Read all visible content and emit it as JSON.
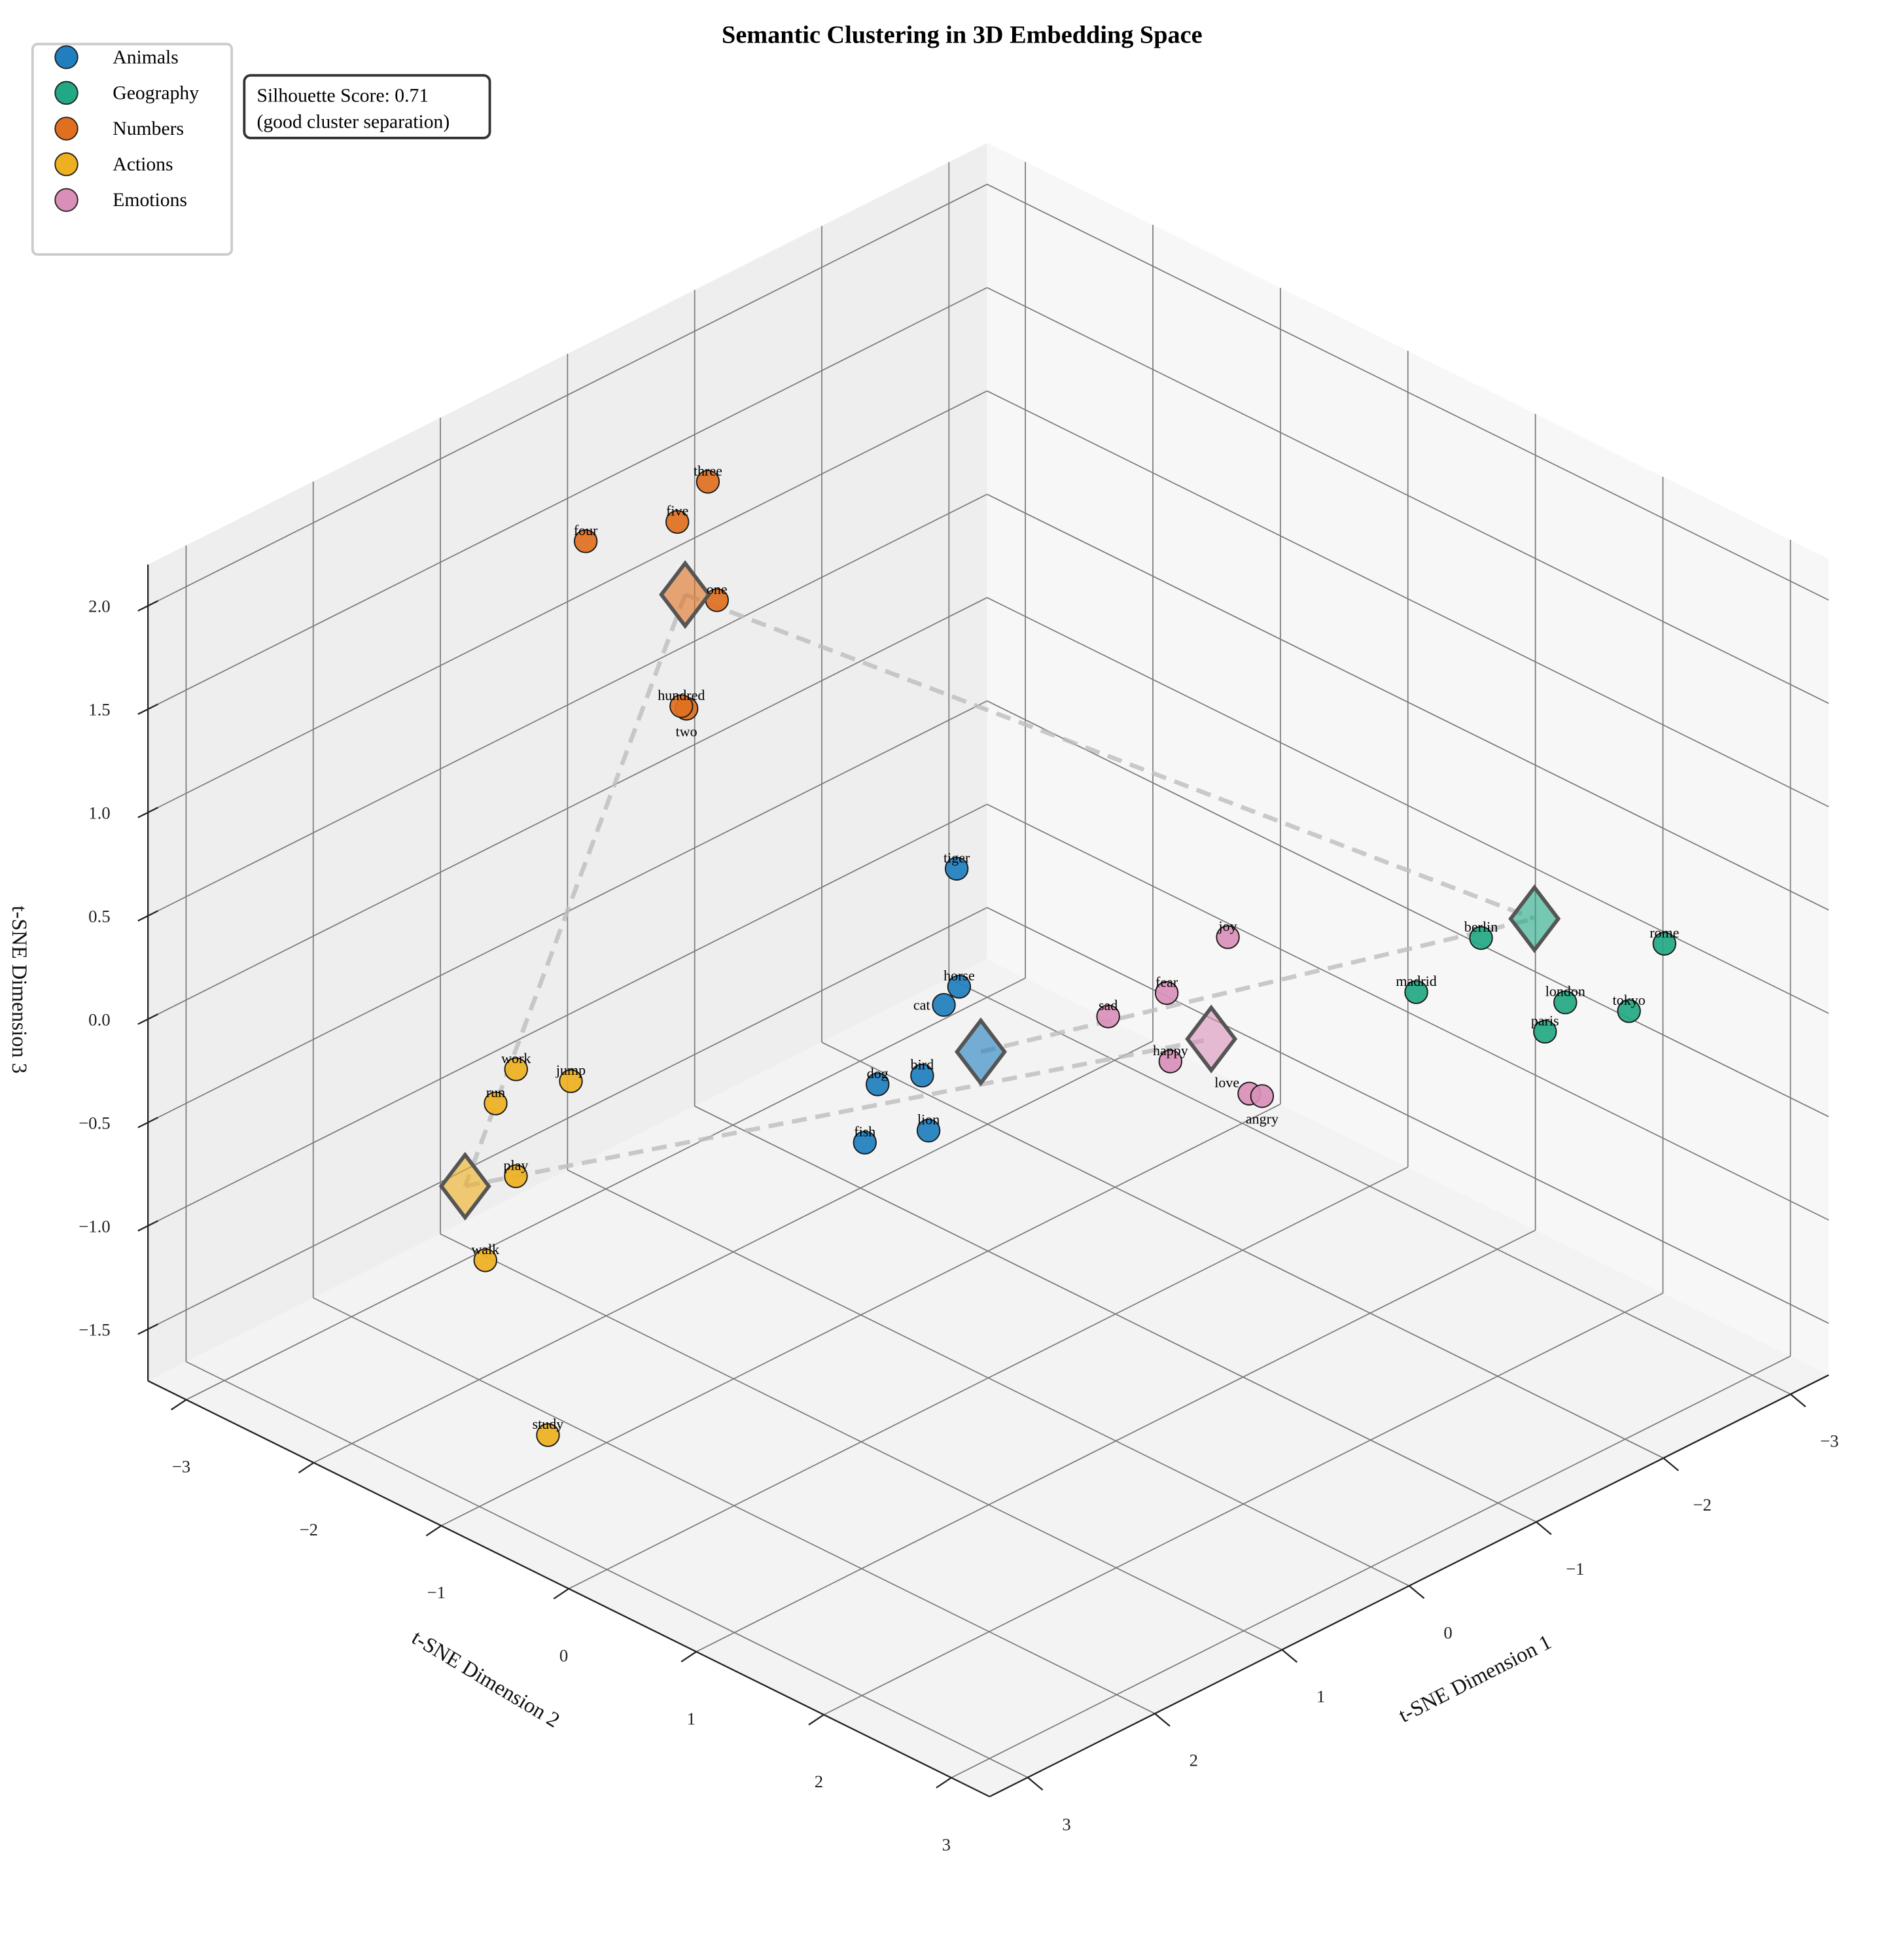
{
  "chart_data": {
    "type": "scatter3d",
    "title": "Semantic Clustering in 3D Embedding Space",
    "xlabel": "t-SNE Dimension 1",
    "ylabel": "t-SNE Dimension 2",
    "zlabel": "t-SNE Dimension 3",
    "xlim": [
      -3.3,
      3.3
    ],
    "ylim": [
      -3.3,
      3.3
    ],
    "zlim": [
      -1.75,
      2.2
    ],
    "xticks": [
      "-3",
      "-2",
      "-1",
      "0",
      "1",
      "2",
      "3"
    ],
    "yticks": [
      "-3",
      "-2",
      "-1",
      "0",
      "1",
      "2",
      "3"
    ],
    "zticks": [
      "-1.5",
      "-1.0",
      "-0.5",
      "0.0",
      "0.5",
      "1.0",
      "1.5",
      "2.0"
    ],
    "xtick_values": [
      -3,
      -2,
      -1,
      0,
      1,
      2,
      3
    ],
    "ytick_values": [
      -3,
      -2,
      -1,
      0,
      1,
      2,
      3
    ],
    "ztick_values": [
      -1.5,
      -1.0,
      -0.5,
      0.0,
      0.5,
      1.0,
      1.5,
      2.0
    ],
    "grid": true,
    "legend_position": "top-left",
    "annotation": {
      "line1": "Silhouette Score: 0.71",
      "line2": "(good cluster separation)"
    },
    "series": [
      {
        "name": "Animals",
        "color": "#1f7fbf",
        "centroid": [
          0.31,
          0.25,
          0.0
        ],
        "points": [
          {
            "word": "tiger",
            "x": 0.59,
            "y": 0.34,
            "z": 1.0
          },
          {
            "word": "horse",
            "x": 0.37,
            "y": 0.14,
            "z": 0.3
          },
          {
            "word": "cat",
            "x": 0.41,
            "y": 0.06,
            "z": 0.2
          },
          {
            "word": "dog",
            "x": 0.48,
            "y": -0.39,
            "z": -0.3
          },
          {
            "word": "bird",
            "x": 0.4,
            "y": -0.12,
            "z": -0.2
          },
          {
            "word": "fish",
            "x": 0.5,
            "y": -0.47,
            "z": -0.6
          },
          {
            "word": "lion",
            "x": 0.32,
            "y": -0.15,
            "z": -0.5
          }
        ]
      },
      {
        "name": "Geography",
        "color": "#22a884",
        "centroid": [
          -2.41,
          1.88,
          0.3
        ],
        "points": [
          {
            "word": "berlin",
            "x": -2.05,
            "y": 1.82,
            "z": 0.3
          },
          {
            "word": "rome",
            "x": -2.72,
            "y": 2.59,
            "z": 0.3
          },
          {
            "word": "madrid",
            "x": -1.37,
            "y": 1.99,
            "z": 0.3
          },
          {
            "word": "london",
            "x": -1.87,
            "y": 2.66,
            "z": 0.3
          },
          {
            "word": "tokyo",
            "x": -2.05,
            "y": 2.98,
            "z": 0.3
          },
          {
            "word": "paris",
            "x": -1.56,
            "y": 2.81,
            "z": 0.3
          }
        ]
      },
      {
        "name": "Numbers",
        "color": "#e07020",
        "centroid": [
          0.79,
          -1.59,
          1.8
        ],
        "points": [
          {
            "word": "three",
            "x": 0.3,
            "y": -1.9,
            "z": 2.1
          },
          {
            "word": "five",
            "x": 0.41,
            "y": -2.03,
            "z": 1.9
          },
          {
            "word": "four",
            "x": 0.92,
            "y": -2.24,
            "z": 1.9
          },
          {
            "word": "one",
            "x": 0.71,
            "y": -1.42,
            "z": 1.8
          },
          {
            "word": "two",
            "x": 0.87,
            "y": -1.5,
            "z": 1.3
          },
          {
            "word": "hundred",
            "x": 0.87,
            "y": -1.54,
            "z": 1.3
          }
        ]
      },
      {
        "name": "Actions",
        "color": "#eeb020",
        "centroid": [
          2.24,
          -1.87,
          -0.7
        ],
        "points": [
          {
            "word": "work",
            "x": 2.26,
            "y": -1.45,
            "z": 0.0
          },
          {
            "word": "jump",
            "x": 2.14,
            "y": -1.14,
            "z": 0.0
          },
          {
            "word": "run",
            "x": 2.12,
            "y": -1.75,
            "z": -0.3
          },
          {
            "word": "play",
            "x": 1.8,
            "y": -1.91,
            "z": -0.8
          },
          {
            "word": "walk",
            "x": 1.93,
            "y": -2.02,
            "z": -1.2
          },
          {
            "word": "study",
            "x": 2.25,
            "y": -1.21,
            "z": -1.7
          }
        ]
      },
      {
        "name": "Emotions",
        "color": "#d98fb8",
        "centroid": [
          -0.69,
          1.06,
          0.0
        ],
        "points": [
          {
            "word": "joy",
            "x": -0.58,
            "y": 1.3,
            "z": 0.6
          },
          {
            "word": "fear",
            "x": -0.39,
            "y": 1.01,
            "z": 0.3
          },
          {
            "word": "sad",
            "x": -0.14,
            "y": 0.8,
            "z": 0.2
          },
          {
            "word": "happy",
            "x": -0.68,
            "y": 0.75,
            "z": -0.2
          },
          {
            "word": "love",
            "x": -1.06,
            "y": 0.99,
            "z": -0.4
          },
          {
            "word": "angry",
            "x": -1.09,
            "y": 1.06,
            "z": -0.4
          }
        ]
      }
    ],
    "centroid_links": [
      [
        "Numbers",
        "Geography"
      ],
      [
        "Numbers",
        "Actions"
      ],
      [
        "Actions",
        "Emotions"
      ],
      [
        "Animals",
        "Geography"
      ]
    ]
  }
}
